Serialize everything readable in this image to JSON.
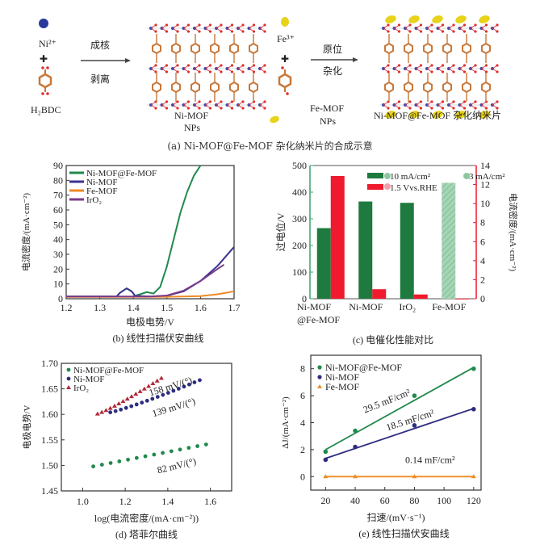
{
  "panel_a": {
    "caption": "(a) Ni-MOF@Fe-MOF 杂化纳米片的合成示意",
    "ni_ion": "Ni²⁺",
    "plus": "✚",
    "ligand": "H₂BDC",
    "step1_top": "成核",
    "step1_bottom": "剥离",
    "nimof_label_1": "Ni-MOF",
    "nimof_label_2": "NPs",
    "fe_ion": "Fe³⁺",
    "step2_top": "原位",
    "step2_bottom": "杂化",
    "femof_label_1": "Fe-MOF",
    "femof_label_2": "NPs",
    "product_label": "Ni-MOF@Fe-MOF 杂化纳米片",
    "colors": {
      "ni": "#2a3a9a",
      "fe": "#e8d21a",
      "carbon": "#c8783a",
      "oxygen": "#e03030",
      "metal_node": "#3a4ab0"
    }
  },
  "chart_data": [
    {
      "id": "b",
      "type": "line",
      "caption": "(b) 线性扫描伏安曲线",
      "xlabel": "电极电势/V",
      "ylabel": "电流密度/(mA·cm⁻²)",
      "xlim": [
        1.2,
        1.7
      ],
      "ylim": [
        0,
        90
      ],
      "xticks": [
        "1.2",
        "1.3",
        "1.4",
        "1.5",
        "1.6",
        "1.7"
      ],
      "yticks": [
        "0",
        "10",
        "20",
        "30",
        "40",
        "50",
        "60",
        "70",
        "80",
        "90"
      ],
      "legend_position": "top-left",
      "series": [
        {
          "name": "Ni-MOF@Fe-MOF",
          "color": "#1f8a4c",
          "x": [
            1.2,
            1.35,
            1.36,
            1.38,
            1.395,
            1.405,
            1.42,
            1.44,
            1.46,
            1.48,
            1.5,
            1.52,
            1.54,
            1.56,
            1.58,
            1.6
          ],
          "y": [
            1.5,
            1.5,
            4,
            7,
            5,
            2,
            3,
            4.5,
            3.5,
            8,
            22,
            40,
            58,
            72,
            83,
            90
          ]
        },
        {
          "name": "Ni-MOF",
          "color": "#3a3490",
          "x": [
            1.2,
            1.35,
            1.36,
            1.38,
            1.395,
            1.405,
            1.45,
            1.5,
            1.55,
            1.6,
            1.65,
            1.7
          ],
          "y": [
            1.5,
            1.5,
            4,
            7,
            5,
            2,
            1.5,
            2,
            5,
            12,
            22,
            35
          ]
        },
        {
          "name": "Fe-MOF",
          "color": "#f08a24",
          "x": [
            1.2,
            1.5,
            1.6,
            1.65,
            1.7
          ],
          "y": [
            1.2,
            1.3,
            1.8,
            3,
            5
          ]
        },
        {
          "name": "IrO₂",
          "color": "#7a3a8a",
          "x": [
            1.2,
            1.45,
            1.5,
            1.55,
            1.6,
            1.65,
            1.67
          ],
          "y": [
            1.5,
            1.5,
            2.2,
            5.5,
            12,
            20,
            23
          ]
        }
      ]
    },
    {
      "id": "c",
      "type": "bar",
      "caption": "(c) 电催化性能对比",
      "ylabel": "过电位/V",
      "ylabel_right": "电流密度/(mA·cm⁻²)",
      "categories": [
        "Ni-MOF\n@Fe-MOF",
        "Ni-MOF",
        "IrO₂",
        "Fe-MOF"
      ],
      "category_lines": [
        [
          "Ni-MOF",
          "@Fe-MOF"
        ],
        [
          "Ni-MOF"
        ],
        [
          "IrO₂"
        ],
        [
          "Fe-MOF"
        ]
      ],
      "ylim": [
        0,
        500
      ],
      "ylim_right": [
        0,
        14
      ],
      "yticks": [
        "0",
        "100",
        "200",
        "300",
        "400",
        "500"
      ],
      "yticks_right": [
        "0",
        "2",
        "4",
        "6",
        "8",
        "10",
        "12",
        "14"
      ],
      "legend_position": "top-right",
      "legend": [
        "10 mA/cm²",
        "3 mA/cm²",
        "1.5 Vvs.RHE"
      ],
      "series": [
        {
          "name": "10 mA/cm²",
          "axis": "left",
          "color": "#1e7a3e",
          "values": [
            265,
            365,
            360,
            null
          ]
        },
        {
          "name": "3 mA/cm²",
          "axis": "left",
          "color": "#8cc7a0",
          "hatched": true,
          "values": [
            null,
            null,
            null,
            435
          ]
        },
        {
          "name": "1.5 Vvs.RHE",
          "axis": "right",
          "color": "#ef1a2e",
          "values": [
            12.9,
            1.0,
            0.45,
            0.02
          ]
        }
      ]
    },
    {
      "id": "d",
      "type": "scatter",
      "caption": "(d) 塔菲尔曲线",
      "xlabel": "log(电流密度/(mA·cm⁻²))",
      "ylabel": "电极电势/V",
      "xlim": [
        0.9,
        1.7
      ],
      "ylim": [
        1.45,
        1.7
      ],
      "xticks": [
        "1.0",
        "1.2",
        "1.4",
        "1.6"
      ],
      "yticks": [
        "1.45",
        "1.50",
        "1.55",
        "1.60",
        "1.65",
        "1.70"
      ],
      "legend_position": "top-left",
      "series": [
        {
          "name": "Ni-MOF@Fe-MOF",
          "color": "#1f8a4c",
          "marker": "circle",
          "x0": 1.05,
          "x1": 1.58,
          "y0": 1.498,
          "y1": 1.541,
          "n": 14
        },
        {
          "name": "Ni-MOF",
          "color": "#2e2e80",
          "marker": "circle",
          "x0": 1.13,
          "x1": 1.55,
          "y0": 1.604,
          "y1": 1.667,
          "n": 18
        },
        {
          "name": "IrO₂",
          "color": "#b02a3a",
          "marker": "triangle",
          "x0": 1.07,
          "x1": 1.37,
          "y0": 1.601,
          "y1": 1.671,
          "n": 16
        }
      ],
      "annotations": [
        "158 mV/(°)",
        "139 mV/(°)",
        "82 mV/(°)"
      ]
    },
    {
      "id": "e",
      "type": "scatter",
      "caption": "(e) 线性扫描伏安曲线",
      "xlabel": "扫速/(mV·s⁻¹)",
      "ylabel": "ΔJ/(mA·cm⁻²)",
      "xlim": [
        10,
        125
      ],
      "ylim": [
        -1,
        9
      ],
      "xticks": [
        "20",
        "40",
        "60",
        "80",
        "100",
        "120"
      ],
      "yticks": [
        "0",
        "2",
        "4",
        "6",
        "8"
      ],
      "legend_position": "top-left",
      "x": [
        20,
        40,
        80,
        120
      ],
      "series": [
        {
          "name": "Ni-MOF@Fe-MOF",
          "color": "#1f8a4c",
          "marker": "circle",
          "values": [
            1.85,
            3.4,
            6.0,
            8.0
          ],
          "fit": [
            2.0,
            8.1
          ]
        },
        {
          "name": "Ni-MOF",
          "color": "#2e2e80",
          "marker": "circle",
          "values": [
            1.25,
            2.2,
            3.8,
            5.0
          ],
          "fit": [
            1.35,
            5.05
          ]
        },
        {
          "name": "Fe-MOF",
          "color": "#f08a24",
          "marker": "triangle",
          "values": [
            0.0,
            0.0,
            0.0,
            0.0
          ],
          "fit": [
            0.0,
            0.0
          ]
        }
      ],
      "annotations": [
        "29.5 mF/cm²",
        "18.5 mF/cm²",
        "0.14 mF/cm²"
      ]
    }
  ]
}
